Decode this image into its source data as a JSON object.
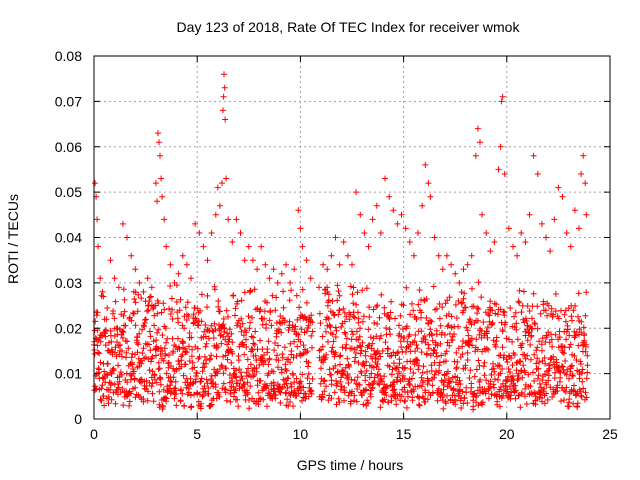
{
  "chart_data": {
    "type": "scatter",
    "title": "Day 123 of 2018, Rate Of TEC Index for receiver wmok",
    "xlabel": "GPS time / hours",
    "ylabel": "ROTI / TECUs",
    "xlim": [
      0,
      25
    ],
    "ylim": [
      0,
      0.08
    ],
    "xticks": [
      0,
      5,
      10,
      15,
      20,
      25
    ],
    "yticks": [
      0,
      0.01,
      0.02,
      0.03,
      0.04,
      0.05,
      0.06,
      0.07,
      0.08
    ],
    "xtick_labels": [
      "0",
      "5",
      "10",
      "15",
      "20",
      "25"
    ],
    "ytick_labels": [
      "0",
      "0.01",
      "0.02",
      "0.03",
      "0.04",
      "0.05",
      "0.06",
      "0.07",
      "0.08"
    ],
    "grid": true,
    "marker": "+",
    "marker_color": "#ff0000",
    "series": [
      {
        "points": [
          [
            0.05,
            0.052
          ],
          [
            0.1,
            0.049
          ],
          [
            0.15,
            0.044
          ],
          [
            0.2,
            0.038
          ],
          [
            0.3,
            0.031
          ],
          [
            0.45,
            0.027
          ],
          [
            0.6,
            0.022
          ],
          [
            0.8,
            0.035
          ],
          [
            1.0,
            0.031
          ],
          [
            1.2,
            0.029
          ],
          [
            1.4,
            0.043
          ],
          [
            1.6,
            0.04
          ],
          [
            1.8,
            0.036
          ],
          [
            2.0,
            0.033
          ],
          [
            2.2,
            0.03
          ],
          [
            2.4,
            0.028
          ],
          [
            2.6,
            0.031
          ],
          [
            2.8,
            0.029
          ],
          [
            3.0,
            0.052
          ],
          [
            3.05,
            0.048
          ],
          [
            3.1,
            0.063
          ],
          [
            3.15,
            0.061
          ],
          [
            3.2,
            0.058
          ],
          [
            3.25,
            0.053
          ],
          [
            3.3,
            0.049
          ],
          [
            3.4,
            0.044
          ],
          [
            3.5,
            0.038
          ],
          [
            3.7,
            0.034
          ],
          [
            3.9,
            0.03
          ],
          [
            4.1,
            0.032
          ],
          [
            4.3,
            0.036
          ],
          [
            4.5,
            0.034
          ],
          [
            4.7,
            0.031
          ],
          [
            4.9,
            0.043
          ],
          [
            5.1,
            0.041
          ],
          [
            5.3,
            0.038
          ],
          [
            5.5,
            0.035
          ],
          [
            5.7,
            0.041
          ],
          [
            5.9,
            0.045
          ],
          [
            6.0,
            0.051
          ],
          [
            6.1,
            0.047
          ],
          [
            6.2,
            0.052
          ],
          [
            6.25,
            0.068
          ],
          [
            6.28,
            0.071
          ],
          [
            6.3,
            0.076
          ],
          [
            6.33,
            0.073
          ],
          [
            6.35,
            0.066
          ],
          [
            6.4,
            0.053
          ],
          [
            6.5,
            0.044
          ],
          [
            6.7,
            0.039
          ],
          [
            6.9,
            0.044
          ],
          [
            7.1,
            0.041
          ],
          [
            7.3,
            0.035
          ],
          [
            7.5,
            0.038
          ],
          [
            7.7,
            0.035
          ],
          [
            7.9,
            0.033
          ],
          [
            8.1,
            0.038
          ],
          [
            8.3,
            0.034
          ],
          [
            8.5,
            0.031
          ],
          [
            8.7,
            0.033
          ],
          [
            8.9,
            0.03
          ],
          [
            9.1,
            0.032
          ],
          [
            9.3,
            0.034
          ],
          [
            9.5,
            0.03
          ],
          [
            9.7,
            0.033
          ],
          [
            9.9,
            0.046
          ],
          [
            10.0,
            0.042
          ],
          [
            10.1,
            0.038
          ],
          [
            10.3,
            0.035
          ],
          [
            10.5,
            0.031
          ],
          [
            10.9,
            0.029
          ],
          [
            11.1,
            0.034
          ],
          [
            11.3,
            0.033
          ],
          [
            11.5,
            0.036
          ],
          [
            11.7,
            0.04
          ],
          [
            11.9,
            0.034
          ],
          [
            12.1,
            0.039
          ],
          [
            12.3,
            0.036
          ],
          [
            12.5,
            0.034
          ],
          [
            12.7,
            0.05
          ],
          [
            12.9,
            0.045
          ],
          [
            13.1,
            0.041
          ],
          [
            13.3,
            0.038
          ],
          [
            13.5,
            0.044
          ],
          [
            13.7,
            0.047
          ],
          [
            13.9,
            0.041
          ],
          [
            14.1,
            0.053
          ],
          [
            14.3,
            0.049
          ],
          [
            14.5,
            0.046
          ],
          [
            14.7,
            0.043
          ],
          [
            14.9,
            0.045
          ],
          [
            15.1,
            0.042
          ],
          [
            15.3,
            0.039
          ],
          [
            15.5,
            0.036
          ],
          [
            15.7,
            0.041
          ],
          [
            15.9,
            0.047
          ],
          [
            16.05,
            0.056
          ],
          [
            16.2,
            0.052
          ],
          [
            16.3,
            0.049
          ],
          [
            16.5,
            0.04
          ],
          [
            16.7,
            0.036
          ],
          [
            16.9,
            0.033
          ],
          [
            17.1,
            0.036
          ],
          [
            17.3,
            0.034
          ],
          [
            17.5,
            0.032
          ],
          [
            17.7,
            0.03
          ],
          [
            17.9,
            0.033
          ],
          [
            18.1,
            0.034
          ],
          [
            18.3,
            0.036
          ],
          [
            18.5,
            0.058
          ],
          [
            18.6,
            0.064
          ],
          [
            18.7,
            0.061
          ],
          [
            18.8,
            0.045
          ],
          [
            19.0,
            0.041
          ],
          [
            19.2,
            0.037
          ],
          [
            19.4,
            0.039
          ],
          [
            19.6,
            0.055
          ],
          [
            19.7,
            0.06
          ],
          [
            19.75,
            0.07
          ],
          [
            19.8,
            0.071
          ],
          [
            19.9,
            0.054
          ],
          [
            20.1,
            0.042
          ],
          [
            20.3,
            0.038
          ],
          [
            20.5,
            0.036
          ],
          [
            20.7,
            0.041
          ],
          [
            20.9,
            0.039
          ],
          [
            21.1,
            0.045
          ],
          [
            21.3,
            0.058
          ],
          [
            21.5,
            0.054
          ],
          [
            21.7,
            0.043
          ],
          [
            21.9,
            0.04
          ],
          [
            22.1,
            0.037
          ],
          [
            22.3,
            0.044
          ],
          [
            22.5,
            0.051
          ],
          [
            22.7,
            0.049
          ],
          [
            22.9,
            0.041
          ],
          [
            23.1,
            0.038
          ],
          [
            23.3,
            0.046
          ],
          [
            23.5,
            0.042
          ],
          [
            23.6,
            0.054
          ],
          [
            23.7,
            0.058
          ],
          [
            23.8,
            0.052
          ],
          [
            23.85,
            0.045
          ]
        ]
      }
    ],
    "dense_band": {
      "x_range": [
        0,
        23.9
      ],
      "y_floor_range": [
        0.002,
        0.006
      ],
      "y_ceiling_range": [
        0.022,
        0.031
      ],
      "data_gap": [
        10.6,
        10.9
      ]
    }
  }
}
